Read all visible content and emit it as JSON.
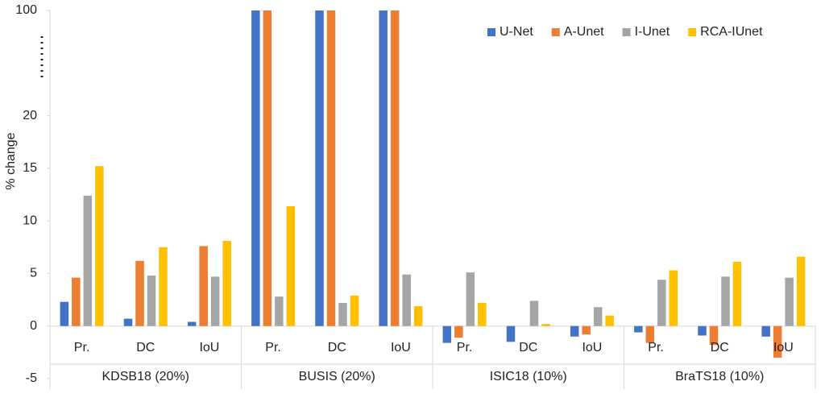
{
  "chart_data": {
    "type": "bar",
    "y_label": "% change",
    "categories": [
      "Pr.",
      "DC",
      "IoU",
      "Pr.",
      "DC",
      "IoU",
      "Pr.",
      "DC",
      "IoU",
      "Pr.",
      "DC",
      "IoU"
    ],
    "groups": [
      "KDSB18 (20%)",
      "BUSIS (20%)",
      "ISIC18 (10%)",
      "BraTS18 (10%)"
    ],
    "series": [
      {
        "name": "U-Net",
        "color": "#4472c4",
        "values": [
          2.3,
          0.7,
          0.4,
          100,
          100,
          100,
          -1.6,
          -1.5,
          -1.0,
          -0.6,
          -0.9,
          -1.0
        ]
      },
      {
        "name": "A-Unet",
        "color": "#ed7d31",
        "values": [
          4.6,
          6.2,
          7.6,
          100,
          100,
          100,
          -1.1,
          0,
          -0.8,
          -1.6,
          -1.8,
          -3.0
        ]
      },
      {
        "name": "I-Unet",
        "color": "#a5a5a5",
        "values": [
          12.4,
          4.8,
          4.7,
          2.8,
          2.2,
          4.9,
          5.1,
          2.4,
          1.8,
          4.4,
          4.7,
          4.6
        ]
      },
      {
        "name": "RCA-IUnet",
        "color": "#ffc000",
        "values": [
          15.2,
          7.5,
          8.1,
          11.4,
          2.9,
          1.9,
          2.2,
          0.2,
          1.0,
          5.3,
          6.1,
          6.6
        ]
      }
    ],
    "ylim": [
      -5,
      100
    ],
    "yticks": [
      -5,
      0,
      5,
      10,
      15,
      20,
      100
    ],
    "axis_break": true,
    "legend": "top-right",
    "grid": false
  }
}
